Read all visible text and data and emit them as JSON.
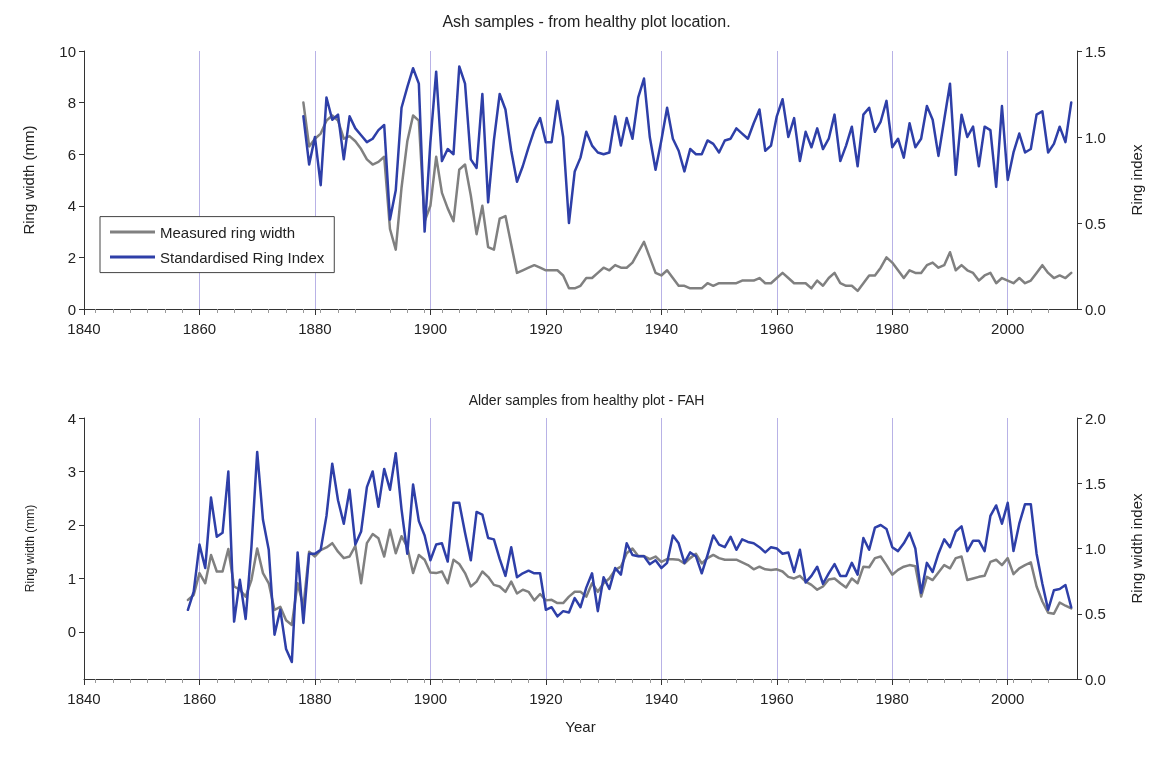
{
  "chart_data": [
    {
      "type": "line",
      "title": "Ash samples - from healthy plot location.",
      "ylabel": "Ring width (mm)",
      "y2label": "Ring index",
      "x": [
        1878,
        1879,
        1880,
        1881,
        1882,
        1883,
        1884,
        1885,
        1886,
        1887,
        1888,
        1889,
        1890,
        1891,
        1892,
        1893,
        1894,
        1895,
        1896,
        1897,
        1898,
        1899,
        1900,
        1901,
        1902,
        1903,
        1904,
        1905,
        1906,
        1907,
        1908,
        1909,
        1910,
        1911,
        1912,
        1913,
        1914,
        1915,
        1916,
        1917,
        1918,
        1919,
        1920,
        1921,
        1922,
        1923,
        1924,
        1925,
        1926,
        1927,
        1928,
        1929,
        1930,
        1931,
        1932,
        1933,
        1934,
        1935,
        1936,
        1937,
        1938,
        1939,
        1940,
        1941,
        1942,
        1943,
        1944,
        1945,
        1946,
        1947,
        1948,
        1949,
        1950,
        1951,
        1952,
        1953,
        1954,
        1955,
        1956,
        1957,
        1958,
        1959,
        1960,
        1961,
        1962,
        1963,
        1964,
        1965,
        1966,
        1967,
        1968,
        1969,
        1970,
        1971,
        1972,
        1973,
        1974,
        1975,
        1976,
        1977,
        1978,
        1979,
        1980,
        1981,
        1982,
        1983,
        1984,
        1985,
        1986,
        1987,
        1988,
        1989,
        1990,
        1991,
        1992,
        1993,
        1994,
        1995,
        1996,
        1997,
        1998,
        1999,
        2000,
        2001,
        2002,
        2003,
        2004,
        2005,
        2006,
        2007,
        2008,
        2009,
        2010,
        2011
      ],
      "series": [
        {
          "name": "Measured ring width",
          "color": "#808080",
          "values": [
            8.0,
            6.3,
            6.6,
            6.8,
            7.3,
            7.5,
            7.3,
            6.6,
            6.7,
            6.5,
            6.2,
            5.8,
            5.6,
            5.7,
            5.9,
            3.1,
            2.3,
            4.7,
            6.5,
            7.5,
            7.3,
            3.4,
            4.0,
            5.9,
            4.5,
            3.9,
            3.4,
            5.4,
            5.6,
            4.4,
            2.9,
            4.0,
            2.4,
            2.3,
            3.5,
            3.6,
            2.5,
            1.4,
            1.5,
            1.6,
            1.7,
            1.6,
            1.5,
            1.5,
            1.5,
            1.3,
            0.8,
            0.8,
            0.9,
            1.2,
            1.2,
            1.4,
            1.6,
            1.5,
            1.7,
            1.6,
            1.6,
            1.8,
            2.2,
            2.6,
            2.0,
            1.4,
            1.3,
            1.5,
            1.2,
            0.9,
            0.9,
            0.8,
            0.8,
            0.8,
            1.0,
            0.9,
            1.0,
            1.0,
            1.0,
            1.0,
            1.1,
            1.1,
            1.1,
            1.2,
            1.0,
            1.0,
            1.2,
            1.4,
            1.2,
            1.0,
            1.0,
            1.0,
            0.8,
            1.1,
            0.9,
            1.2,
            1.4,
            1.0,
            0.9,
            0.9,
            0.7,
            1.0,
            1.3,
            1.3,
            1.6,
            2.0,
            1.8,
            1.5,
            1.2,
            1.5,
            1.4,
            1.4,
            1.7,
            1.8,
            1.6,
            1.7,
            2.2,
            1.5,
            1.7,
            1.5,
            1.4,
            1.1,
            1.3,
            1.4,
            1.0,
            1.2,
            1.1,
            1.0,
            1.2,
            1.0,
            1.1,
            1.4,
            1.7,
            1.4,
            1.2,
            1.3,
            1.2,
            1.4
          ]
        },
        {
          "name": "Standardised Ring Index",
          "color": "#2e3fa8",
          "axis": "y2",
          "values": [
            1.12,
            0.84,
            1.0,
            0.72,
            1.23,
            1.1,
            1.13,
            0.87,
            1.12,
            1.05,
            1.01,
            0.97,
            0.99,
            1.04,
            1.07,
            0.52,
            0.69,
            1.17,
            1.29,
            1.4,
            1.31,
            0.45,
            0.97,
            1.38,
            0.86,
            0.93,
            0.9,
            1.41,
            1.31,
            0.87,
            0.82,
            1.25,
            0.62,
            0.98,
            1.25,
            1.16,
            0.92,
            0.74,
            0.83,
            0.94,
            1.04,
            1.11,
            0.97,
            0.97,
            1.21,
            1.0,
            0.5,
            0.8,
            0.88,
            1.03,
            0.95,
            0.91,
            0.9,
            0.91,
            1.12,
            0.95,
            1.11,
            0.99,
            1.23,
            1.34,
            1.0,
            0.81,
            0.98,
            1.17,
            0.99,
            0.92,
            0.8,
            0.93,
            0.9,
            0.9,
            0.98,
            0.96,
            0.91,
            0.98,
            0.99,
            1.05,
            1.02,
            0.99,
            1.08,
            1.16,
            0.92,
            0.95,
            1.12,
            1.22,
            1.0,
            1.11,
            0.86,
            1.03,
            0.94,
            1.05,
            0.93,
            0.99,
            1.13,
            0.86,
            0.95,
            1.06,
            0.83,
            1.13,
            1.17,
            1.03,
            1.09,
            1.21,
            0.94,
            0.99,
            0.88,
            1.08,
            0.94,
            0.99,
            1.18,
            1.1,
            0.89,
            1.1,
            1.31,
            0.78,
            1.13,
            1.0,
            1.06,
            0.83,
            1.06,
            1.04,
            0.71,
            1.18,
            0.75,
            0.91,
            1.02,
            0.91,
            0.93,
            1.13,
            1.15,
            0.91,
            0.96,
            1.06,
            0.97,
            1.2
          ]
        }
      ],
      "xlim": [
        1840,
        2012
      ],
      "xticks": [
        1840,
        1860,
        1880,
        1900,
        1920,
        1940,
        1960,
        1980,
        2000
      ],
      "ylim": [
        0,
        10
      ],
      "yticks": [
        0,
        2,
        4,
        6,
        8,
        10
      ],
      "y2lim": [
        0,
        1.5
      ],
      "y2ticks": [
        {
          "value": 0,
          "label": "0.0"
        },
        {
          "value": 0.5,
          "label": "0.5"
        },
        {
          "value": 1,
          "label": "1.0"
        },
        {
          "value": 1.5,
          "label": "1.5"
        }
      ],
      "grid": "x",
      "legend": "left",
      "marker": "none",
      "line_style": "solid"
    },
    {
      "type": "line",
      "title": "Alder samples from healthy plot - FAH",
      "xlabel": "Year",
      "ylabel": "Ring width (mm)",
      "y2label": "Ring width index",
      "x": [
        1858,
        1859,
        1860,
        1861,
        1862,
        1863,
        1864,
        1865,
        1866,
        1867,
        1868,
        1869,
        1870,
        1871,
        1872,
        1873,
        1874,
        1875,
        1876,
        1877,
        1878,
        1879,
        1880,
        1881,
        1882,
        1883,
        1884,
        1885,
        1886,
        1887,
        1888,
        1889,
        1890,
        1891,
        1892,
        1893,
        1894,
        1895,
        1896,
        1897,
        1898,
        1899,
        1900,
        1901,
        1902,
        1903,
        1904,
        1905,
        1906,
        1907,
        1908,
        1909,
        1910,
        1911,
        1912,
        1913,
        1914,
        1915,
        1916,
        1917,
        1918,
        1919,
        1920,
        1921,
        1922,
        1923,
        1924,
        1925,
        1926,
        1927,
        1928,
        1929,
        1930,
        1931,
        1932,
        1933,
        1934,
        1935,
        1936,
        1937,
        1938,
        1939,
        1940,
        1941,
        1942,
        1943,
        1944,
        1945,
        1946,
        1947,
        1948,
        1949,
        1950,
        1951,
        1952,
        1953,
        1954,
        1955,
        1956,
        1957,
        1958,
        1959,
        1960,
        1961,
        1962,
        1963,
        1964,
        1965,
        1966,
        1967,
        1968,
        1969,
        1970,
        1971,
        1972,
        1973,
        1974,
        1975,
        1976,
        1977,
        1978,
        1979,
        1980,
        1981,
        1982,
        1983,
        1984,
        1985,
        1986,
        1987,
        1988,
        1989,
        1990,
        1991,
        1992,
        1993,
        1994,
        1995,
        1996,
        1997,
        1998,
        1999,
        2000,
        2001,
        2002,
        2003,
        2004,
        2005,
        2006,
        2007,
        2008,
        2009,
        2010,
        2011
      ],
      "series": [
        {
          "color": "#808080",
          "values": [
            0.6,
            0.69,
            1.1,
            0.91,
            1.44,
            1.13,
            1.13,
            1.55,
            0.85,
            0.79,
            0.66,
            0.97,
            1.56,
            1.1,
            0.91,
            0.41,
            0.47,
            0.22,
            0.13,
            0.91,
            0.47,
            1.5,
            1.41,
            1.53,
            1.58,
            1.66,
            1.5,
            1.38,
            1.41,
            1.61,
            0.91,
            1.66,
            1.83,
            1.75,
            1.41,
            1.91,
            1.47,
            1.79,
            1.59,
            1.1,
            1.44,
            1.35,
            1.11,
            1.1,
            1.13,
            0.91,
            1.35,
            1.27,
            1.1,
            0.85,
            0.94,
            1.13,
            1.03,
            0.88,
            0.85,
            0.75,
            0.94,
            0.72,
            0.79,
            0.75,
            0.59,
            0.71,
            0.59,
            0.6,
            0.54,
            0.54,
            0.66,
            0.75,
            0.75,
            0.66,
            0.91,
            0.75,
            0.91,
            1.0,
            1.16,
            1.22,
            1.47,
            1.56,
            1.42,
            1.42,
            1.36,
            1.41,
            1.31,
            1.36,
            1.36,
            1.35,
            1.28,
            1.38,
            1.46,
            1.28,
            1.38,
            1.44,
            1.38,
            1.35,
            1.35,
            1.35,
            1.3,
            1.25,
            1.17,
            1.22,
            1.17,
            1.16,
            1.17,
            1.13,
            1.03,
            1.0,
            1.05,
            0.94,
            0.88,
            0.79,
            0.85,
            0.98,
            1.0,
            0.91,
            0.83,
            1.0,
            0.91,
            1.22,
            1.21,
            1.38,
            1.41,
            1.25,
            1.07,
            1.16,
            1.22,
            1.25,
            1.23,
            0.66,
            1.03,
            0.97,
            1.11,
            1.25,
            1.19,
            1.38,
            1.41,
            0.97,
            1.0,
            1.03,
            1.05,
            1.31,
            1.35,
            1.25,
            1.38,
            1.08,
            1.19,
            1.25,
            1.3,
            0.85,
            0.57,
            0.36,
            0.34,
            0.55,
            0.49,
            0.44
          ]
        },
        {
          "color": "#2e3fa8",
          "axis": "y2",
          "values": [
            0.53,
            0.67,
            1.03,
            0.85,
            1.39,
            1.09,
            1.12,
            1.59,
            0.44,
            0.76,
            0.46,
            1.01,
            1.74,
            1.22,
            0.99,
            0.34,
            0.53,
            0.23,
            0.13,
            0.97,
            0.43,
            0.96,
            0.96,
            0.99,
            1.25,
            1.65,
            1.37,
            1.19,
            1.45,
            1.03,
            1.13,
            1.47,
            1.59,
            1.32,
            1.61,
            1.45,
            1.73,
            1.3,
            0.96,
            1.49,
            1.21,
            1.1,
            0.91,
            1.03,
            1.04,
            0.9,
            1.35,
            1.35,
            1.12,
            0.91,
            1.28,
            1.26,
            1.08,
            1.07,
            0.92,
            0.79,
            1.01,
            0.78,
            0.81,
            0.83,
            0.81,
            0.81,
            0.53,
            0.55,
            0.48,
            0.52,
            0.51,
            0.62,
            0.55,
            0.7,
            0.81,
            0.52,
            0.78,
            0.69,
            0.85,
            0.8,
            1.04,
            0.95,
            0.94,
            0.94,
            0.88,
            0.91,
            0.85,
            0.89,
            1.1,
            1.04,
            0.89,
            0.97,
            0.94,
            0.81,
            0.95,
            1.1,
            1.03,
            1.01,
            1.09,
            0.99,
            1.07,
            1.05,
            1.04,
            1.01,
            0.97,
            1.01,
            1.0,
            0.96,
            0.97,
            0.82,
            0.99,
            0.74,
            0.79,
            0.86,
            0.73,
            0.81,
            0.88,
            0.79,
            0.79,
            0.89,
            0.8,
            1.08,
            0.99,
            1.16,
            1.18,
            1.15,
            1.01,
            0.98,
            1.04,
            1.12,
            1.0,
            0.66,
            0.89,
            0.82,
            0.96,
            1.07,
            1.01,
            1.13,
            1.17,
            0.98,
            1.06,
            1.06,
            0.98,
            1.25,
            1.33,
            1.19,
            1.35,
            0.98,
            1.19,
            1.34,
            1.34,
            0.96,
            0.73,
            0.53,
            0.68,
            0.69,
            0.72,
            0.55
          ]
        }
      ],
      "xlim": [
        1840,
        2012
      ],
      "xticks": [
        1840,
        1860,
        1880,
        1900,
        1920,
        1940,
        1960,
        1980,
        2000
      ],
      "ylim": [
        -0.88,
        4
      ],
      "yticks": [
        0,
        1,
        2,
        3,
        4
      ],
      "y2lim": [
        0,
        2
      ],
      "y2ticks": [
        {
          "value": 0,
          "label": "0.0"
        },
        {
          "value": 0.5,
          "label": "0.5"
        },
        {
          "value": 1,
          "label": "1.0"
        },
        {
          "value": 1.5,
          "label": "1.5"
        },
        {
          "value": 2,
          "label": "2.0"
        }
      ],
      "grid": "x",
      "legend": false,
      "marker": "none",
      "line_style": "solid"
    }
  ]
}
